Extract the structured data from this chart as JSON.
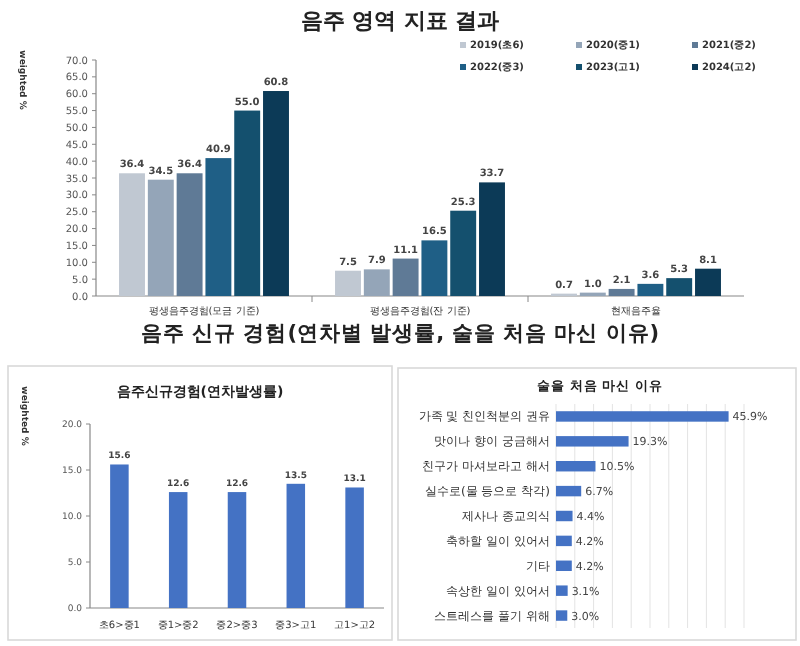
{
  "chart_data": [
    {
      "type": "bar",
      "title": "음주 영역 지표 결과",
      "ylabel": "weighted %",
      "legend": "top right",
      "categories": [
        "평생음주경험(모금 기준)",
        "평생음주경험(잔 기준)",
        "현재음주율"
      ],
      "series": [
        {
          "name": "2019(초6)",
          "color": "#c0c8d2",
          "values": [
            36.4,
            7.5,
            0.7
          ],
          "value_labels": [
            "36.4",
            "7.5",
            "0.7"
          ]
        },
        {
          "name": "2020(중1)",
          "color": "#94a5b8",
          "values": [
            34.5,
            7.9,
            1.0
          ],
          "value_labels": [
            "34.5",
            "7.9",
            "1.0"
          ]
        },
        {
          "name": "2021(중2)",
          "color": "#5f7a96",
          "values": [
            36.4,
            11.1,
            2.1
          ],
          "value_labels": [
            "36.4",
            "11.1",
            "2.1"
          ]
        },
        {
          "name": "2022(중3)",
          "color": "#1f5f86",
          "values": [
            40.9,
            16.5,
            3.6
          ],
          "value_labels": [
            "40.9",
            "16.5",
            "3.6"
          ]
        },
        {
          "name": "2023(고1)",
          "color": "#14506e",
          "values": [
            55.0,
            25.3,
            5.3
          ],
          "value_labels": [
            "55.0",
            "25.3",
            "5.3"
          ]
        },
        {
          "name": "2024(고2)",
          "color": "#0c3a57",
          "values": [
            60.8,
            33.7,
            8.1
          ],
          "value_labels": [
            "60.8",
            "33.7",
            "8.1"
          ]
        }
      ],
      "ylim": [
        0,
        70
      ],
      "yticks": [
        {
          "value": 0,
          "label": "0.0"
        },
        {
          "value": 5,
          "label": "5.0"
        },
        {
          "value": 10,
          "label": "10.0"
        },
        {
          "value": 15,
          "label": "15.0"
        },
        {
          "value": 20,
          "label": "20.0"
        },
        {
          "value": 25,
          "label": "25.0"
        },
        {
          "value": 30,
          "label": "30.0"
        },
        {
          "value": 35,
          "label": "35.0"
        },
        {
          "value": 40,
          "label": "40.0"
        },
        {
          "value": 45,
          "label": "45.0"
        },
        {
          "value": 50,
          "label": "50.0"
        },
        {
          "value": 55,
          "label": "55.0"
        },
        {
          "value": 60,
          "label": "60.0"
        },
        {
          "value": 65,
          "label": "65.0"
        },
        {
          "value": 70,
          "label": "70.0"
        }
      ]
    },
    {
      "type": "bar",
      "title": "음주신규경험(연차발생률)",
      "annotations": [
        "음주 신규 경험(연차별 발생률, 술을 처음 마신 이유)"
      ],
      "ylabel": "weighted %",
      "data_labels": true,
      "color": "#4472c4",
      "categories": [
        "초6>중1",
        "중1>중2",
        "중2>중3",
        "중3>고1",
        "고1>고2"
      ],
      "values": [
        15.6,
        12.6,
        12.6,
        13.5,
        13.1
      ],
      "ylim": [
        0,
        20
      ],
      "yticks": [
        {
          "value": 0,
          "label": "0.0"
        },
        {
          "value": 5,
          "label": "5.0"
        },
        {
          "value": 10,
          "label": "10.0"
        },
        {
          "value": 15,
          "label": "15.0"
        },
        {
          "value": 20,
          "label": "20.0"
        }
      ]
    },
    {
      "type": "bar",
      "orientation": "horizontal",
      "title": "술을 처음 마신 이유",
      "color": "#4472c4",
      "grid": "x",
      "categories": [
        "가족 및 친인척분의 권유",
        "맛이나 향이 궁금해서",
        "친구가 마셔보라고 해서",
        "실수로(물 등으로 착각)",
        "제사나 종교의식",
        "축하할 일이 있어서",
        "기타",
        "속상한 일이 있어서",
        "스트레스를 풀기 위해"
      ],
      "values": [
        45.9,
        19.3,
        10.5,
        6.7,
        4.4,
        4.2,
        4.2,
        3.1,
        3.0
      ],
      "value_labels": [
        "45.9%",
        "19.3%",
        "10.5%",
        "6.7%",
        "4.4%",
        "4.2%",
        "4.2%",
        "3.1%",
        "3.0%"
      ],
      "xlim": [
        0,
        50
      ],
      "xticks": [
        {
          "value": 0,
          "label": null
        },
        {
          "value": 5,
          "label": null
        },
        {
          "value": 10,
          "label": null
        },
        {
          "value": 15,
          "label": null
        },
        {
          "value": 20,
          "label": null
        },
        {
          "value": 25,
          "label": null
        },
        {
          "value": 30,
          "label": null
        },
        {
          "value": 35,
          "label": null
        },
        {
          "value": 40,
          "label": null
        },
        {
          "value": 45,
          "label": null
        },
        {
          "value": 50,
          "label": null
        }
      ]
    }
  ]
}
